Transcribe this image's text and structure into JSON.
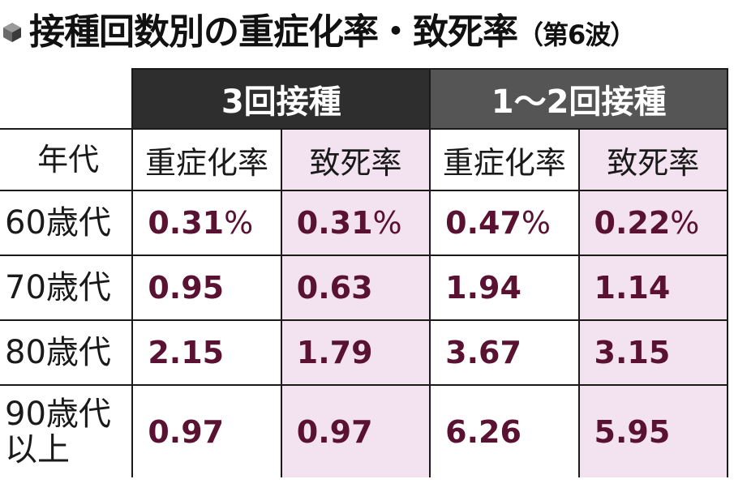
{
  "title": {
    "main": "接種回数別の重症化率・致死率",
    "note": "（第6波）",
    "icon": "cube-icon"
  },
  "table": {
    "corner": "",
    "groups": [
      "3回接種",
      "1～2回接種"
    ],
    "age_header": "年代",
    "sub_headers": [
      "重症化率",
      "致死率",
      "重症化率",
      "致死率"
    ],
    "rows": [
      {
        "age": "60歳代",
        "values": [
          "0.31",
          "0.31",
          "0.47",
          "0.22"
        ],
        "unit": "%"
      },
      {
        "age": "70歳代",
        "values": [
          "0.95",
          "0.63",
          "1.94",
          "1.14"
        ],
        "unit": ""
      },
      {
        "age": "80歳代",
        "values": [
          "2.15",
          "1.79",
          "3.67",
          "3.15"
        ],
        "unit": ""
      },
      {
        "age_line1": "90歳代",
        "age_line2": "以上",
        "values": [
          "0.97",
          "0.97",
          "6.26",
          "5.95"
        ],
        "unit": ""
      }
    ]
  },
  "colors": {
    "group_3_bg": "#2e2e2e",
    "group_12_bg": "#555555",
    "value_text": "#5a1232",
    "death_rate_bg": "#f3e3f0"
  }
}
